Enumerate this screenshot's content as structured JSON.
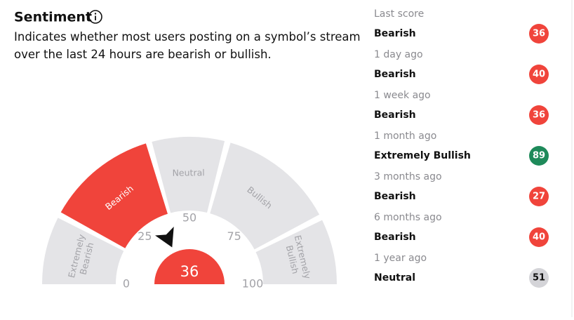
{
  "header": {
    "title": "Sentiment",
    "description": "Indicates whether most users posting on a symbol’s stream over the last 24 hours are bearish or bullish."
  },
  "gauge": {
    "value": 36,
    "range": [
      0,
      100
    ],
    "ticks": [
      0,
      25,
      50,
      75,
      100
    ],
    "segments": [
      "Extremely Bearish",
      "Bearish",
      "Neutral",
      "Bullish",
      "Extremely Bullish"
    ]
  },
  "history": [
    {
      "period": "Last score",
      "label": "Bearish",
      "score": 36,
      "color": "#f0443b"
    },
    {
      "period": "1 day ago",
      "label": "Bearish",
      "score": 40,
      "color": "#f0443b"
    },
    {
      "period": "1 week ago",
      "label": "Bearish",
      "score": 36,
      "color": "#f0443b"
    },
    {
      "period": "1 month ago",
      "label": "Extremely Bullish",
      "score": 89,
      "color": "#1e8a5a"
    },
    {
      "period": "3 months ago",
      "label": "Bearish",
      "score": 27,
      "color": "#f0443b"
    },
    {
      "period": "6 months ago",
      "label": "Bearish",
      "score": 40,
      "color": "#f0443b"
    },
    {
      "period": "1 year ago",
      "label": "Neutral",
      "score": 51,
      "color": "#d4d4d8"
    }
  ]
}
